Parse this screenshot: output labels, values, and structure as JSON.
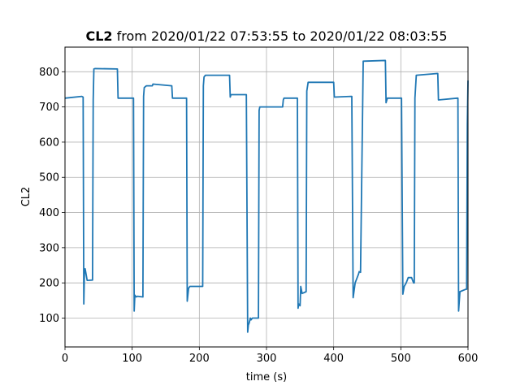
{
  "chart_data": {
    "type": "line",
    "title_bold": "CL2",
    "title_rest": " from 2020/01/22 07:53:55 to 2020/01/22 08:03:55",
    "xlabel": "time (s)",
    "ylabel": "CL2",
    "xlim": [
      0,
      600
    ],
    "ylim": [
      18,
      870
    ],
    "xticks": [
      0,
      100,
      200,
      300,
      400,
      500,
      600
    ],
    "yticks": [
      100,
      200,
      300,
      400,
      500,
      600,
      700,
      800
    ],
    "grid": true,
    "series": [
      {
        "color": "#1f77b4",
        "x": [
          0,
          25,
          27,
          28,
          29,
          30,
          33,
          41,
          42,
          43,
          45,
          78,
          79,
          80,
          102,
          103,
          104,
          106,
          108,
          116,
          117,
          118,
          121,
          130,
          131,
          159,
          160,
          181,
          182,
          184,
          186,
          205,
          206,
          207,
          209,
          245,
          246,
          247,
          249,
          270,
          272,
          273,
          274,
          276,
          277,
          279,
          288,
          289,
          290,
          292,
          324,
          325,
          326,
          346,
          347,
          348,
          350,
          351,
          353,
          359,
          360,
          362,
          399,
          400,
          401,
          426,
          427,
          429,
          432,
          437,
          438,
          440,
          444,
          476,
          477,
          478,
          480,
          500,
          501,
          503,
          505,
          508,
          511,
          514,
          516,
          519,
          520,
          521,
          523,
          554,
          555,
          556,
          584,
          585,
          586,
          588,
          597,
          598,
          599,
          600
        ],
        "y": [
          725,
          730,
          728,
          140,
          235,
          240,
          207,
          208,
          720,
          808,
          809,
          808,
          725,
          725,
          725,
          120,
          165,
          160,
          162,
          160,
          730,
          755,
          760,
          760,
          765,
          760,
          725,
          725,
          148,
          185,
          190,
          190,
          760,
          785,
          790,
          790,
          728,
          735,
          735,
          735,
          60,
          80,
          85,
          100,
          95,
          100,
          100,
          690,
          700,
          700,
          700,
          720,
          725,
          725,
          128,
          140,
          135,
          190,
          170,
          175,
          745,
          770,
          770,
          770,
          728,
          730,
          730,
          158,
          200,
          225,
          232,
          230,
          830,
          832,
          832,
          712,
          725,
          725,
          725,
          168,
          190,
          200,
          215,
          215,
          215,
          200,
          200,
          725,
          790,
          795,
          795,
          720,
          725,
          725,
          120,
          175,
          182,
          182,
          650,
          775
        ]
      }
    ]
  }
}
